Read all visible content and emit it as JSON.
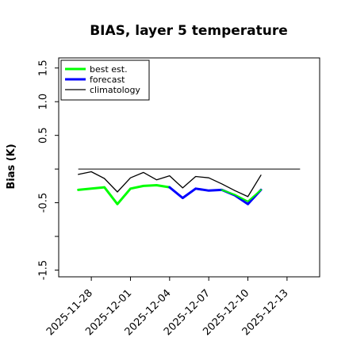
{
  "chart_data": {
    "type": "line",
    "title": "BIAS, layer 5 temperature",
    "xlabel": "",
    "ylabel": "Bias (K)",
    "x_ticks": [
      "2025-11-28",
      "2025-12-01",
      "2025-12-04",
      "2025-12-07",
      "2025-12-10",
      "2025-12-13"
    ],
    "highlight_tick": "2025-12-04",
    "highlight_color": "#228B22",
    "y_ticks": [
      -1.5,
      -1.0,
      -0.5,
      0.0,
      0.5,
      1.0,
      1.5
    ],
    "y_tick_labels": [
      "-1.5",
      "",
      "-0.5",
      "",
      "0.5",
      "1.0",
      "1.5"
    ],
    "xlim": [
      "2025-11-25T12:00",
      "2025-12-15T12:00"
    ],
    "ylim": [
      -1.6,
      1.65
    ],
    "zero_line": true,
    "legend_position": "top-left",
    "series": [
      {
        "name": "best est.",
        "color": "#00ff00",
        "width": 3,
        "x": [
          "2025-11-27",
          "2025-11-28",
          "2025-11-29",
          "2025-11-30",
          "2025-12-01",
          "2025-12-02",
          "2025-12-03",
          "2025-12-04"
        ],
        "y": [
          -0.31,
          -0.29,
          -0.27,
          -0.52,
          -0.29,
          -0.25,
          -0.24,
          -0.27
        ]
      },
      {
        "name": "forecast",
        "color": "#0000ff",
        "width": 3,
        "x": [
          "2025-12-04",
          "2025-12-05",
          "2025-12-06",
          "2025-12-07",
          "2025-12-08",
          "2025-12-09",
          "2025-12-10",
          "2025-12-11"
        ],
        "y": [
          -0.27,
          -0.43,
          -0.29,
          -0.32,
          -0.31,
          -0.39,
          -0.52,
          -0.31
        ]
      },
      {
        "name": "",
        "color": "#00ff00",
        "width": 2,
        "x": [
          "2025-12-08",
          "2025-12-09",
          "2025-12-10",
          "2025-12-11"
        ],
        "y": [
          -0.31,
          -0.38,
          -0.48,
          -0.31
        ]
      },
      {
        "name": "climatology",
        "color": "#000000",
        "width": 1.3,
        "x": [
          "2025-11-27",
          "2025-11-28",
          "2025-11-29",
          "2025-11-30",
          "2025-12-01",
          "2025-12-02",
          "2025-12-03",
          "2025-12-04",
          "2025-12-05",
          "2025-12-06",
          "2025-12-07",
          "2025-12-08",
          "2025-12-09",
          "2025-12-10",
          "2025-12-11"
        ],
        "y": [
          -0.08,
          -0.04,
          -0.14,
          -0.34,
          -0.13,
          -0.05,
          -0.16,
          -0.1,
          -0.28,
          -0.11,
          -0.13,
          -0.22,
          -0.32,
          -0.41,
          -0.09
        ]
      }
    ],
    "legend": [
      {
        "label": "best est.",
        "color": "#00ff00",
        "width": 3
      },
      {
        "label": "forecast",
        "color": "#0000ff",
        "width": 3
      },
      {
        "label": "climatology",
        "color": "#000000",
        "width": 1.3
      }
    ]
  }
}
